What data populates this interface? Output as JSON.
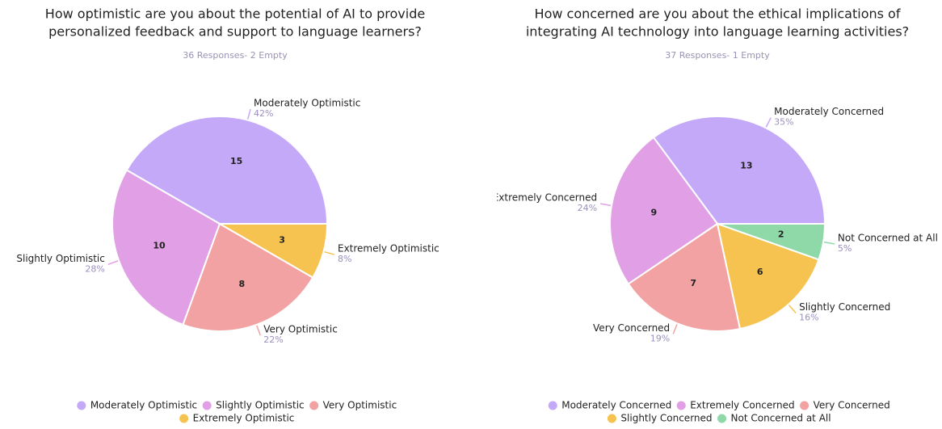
{
  "chart_data": [
    {
      "type": "pie",
      "title": [
        "How optimistic are you about the potential of AI to provide",
        "personalized feedback and support to language learners?"
      ],
      "subtitle": "36 Responses- 2 Empty",
      "categories": [
        "Moderately Optimistic",
        "Slightly Optimistic",
        "Very Optimistic",
        "Extremely Optimistic"
      ],
      "values": [
        15,
        10,
        8,
        3
      ],
      "percent_labels": [
        "42%",
        "28%",
        "22%",
        "8%"
      ],
      "colors": [
        "#c5a9f9",
        "#e1a0e6",
        "#f2a2a2",
        "#f6c250"
      ]
    },
    {
      "type": "pie",
      "title": [
        "How concerned are you about the ethical implications of",
        "integrating AI technology into language learning activities?"
      ],
      "subtitle": "37 Responses- 1 Empty",
      "categories": [
        "Moderately Concerned",
        "Extremely Concerned",
        "Very Concerned",
        "Slightly Concerned",
        "Not Concerned at All"
      ],
      "values": [
        13,
        9,
        7,
        6,
        2
      ],
      "percent_labels": [
        "35%",
        "24%",
        "19%",
        "16%",
        "5%"
      ],
      "colors": [
        "#c5a9f9",
        "#e1a0e6",
        "#f2a2a2",
        "#f6c250",
        "#8fd9a9"
      ]
    }
  ]
}
